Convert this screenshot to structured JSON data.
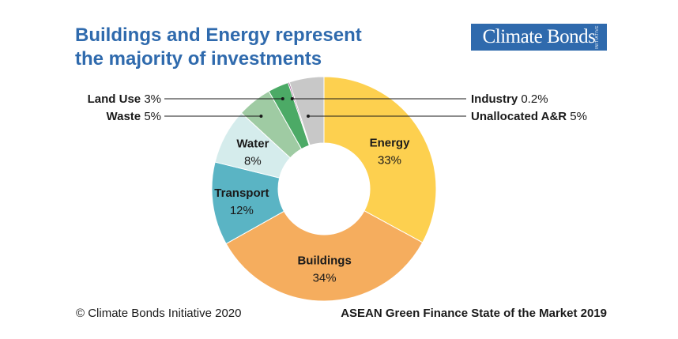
{
  "header": {
    "title_line1": "Buildings and Energy represent",
    "title_line2": "the majority of investments",
    "logo_text": "Climate Bonds",
    "logo_subtext": "INITIATIVE"
  },
  "footer": {
    "copyright": "© Climate Bonds Initiative 2020",
    "source": "ASEAN Green Finance State of the Market 2019"
  },
  "chart_data": {
    "type": "pie",
    "donut": true,
    "categories": [
      "Energy",
      "Buildings",
      "Transport",
      "Water",
      "Waste",
      "Land Use",
      "Industry",
      "Unallocated A&R"
    ],
    "values": [
      33,
      34,
      12,
      8,
      5,
      3,
      0.2,
      5
    ],
    "value_labels": [
      "33%",
      "34%",
      "12%",
      "8%",
      "5%",
      "3%",
      "0.2%",
      "5%"
    ],
    "colors": [
      "#fdd04f",
      "#f5ad5e",
      "#5ab4c4",
      "#d5ecec",
      "#9fcba3",
      "#4caa66",
      "#8a3b7a",
      "#c8c8c8"
    ],
    "label_text_colors": [
      "#1a1a1a",
      "#1a1a1a",
      "#1a1a1a",
      "#1a1a1a",
      "#1a1a1a",
      "#1a1a1a",
      "#1a1a1a",
      "#1a1a1a"
    ]
  }
}
